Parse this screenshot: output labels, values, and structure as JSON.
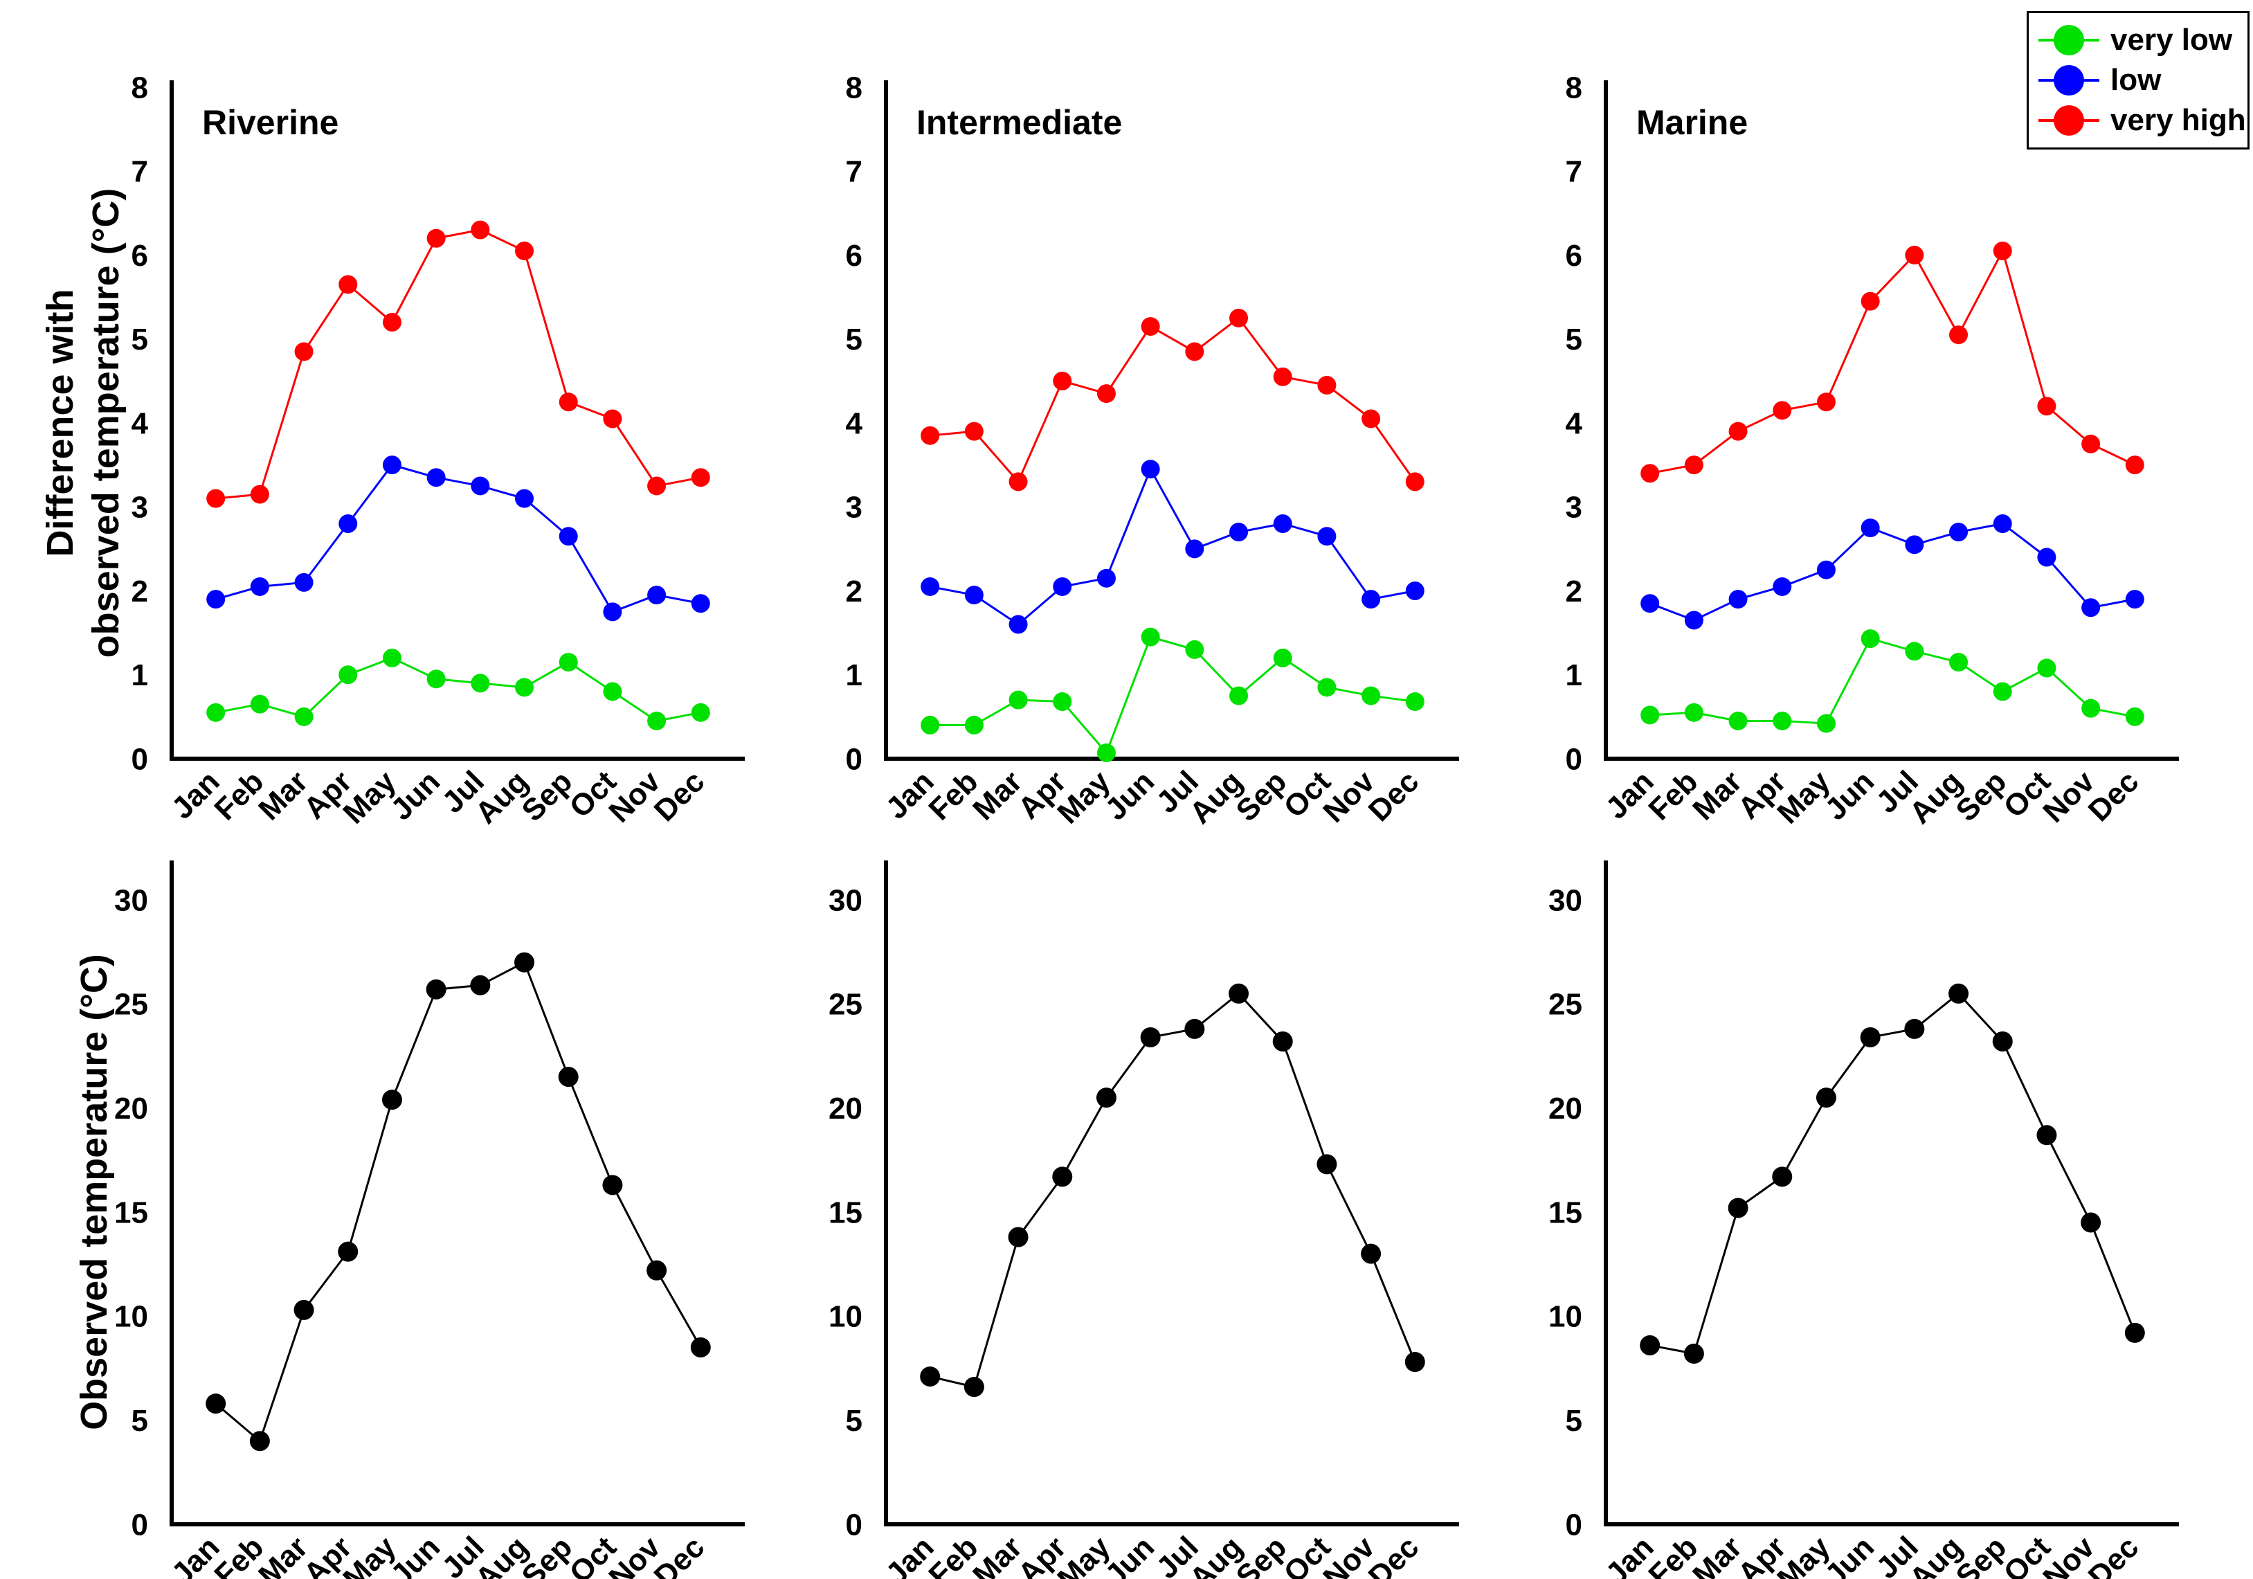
{
  "figure": {
    "background": "#ffffff",
    "axis_color": "#000000"
  },
  "legend": {
    "position": "top-right",
    "items": [
      {
        "label": "very low",
        "color": "#00E100"
      },
      {
        "label": "low",
        "color": "#0000FF"
      },
      {
        "label": "very high",
        "color": "#FF0000"
      }
    ]
  },
  "chart_data": {
    "type": "line",
    "months": [
      "Jan",
      "Feb",
      "Mar",
      "Apr",
      "May",
      "Jun",
      "Jul",
      "Aug",
      "Sep",
      "Oct",
      "Nov",
      "Dec"
    ],
    "top_row": {
      "ylabel": "Difference with observed temperature (°C)",
      "ylabel_lines": [
        "Difference with",
        "observed temperature (°C)"
      ],
      "ylim": [
        0,
        8
      ],
      "yticks": [
        0,
        1,
        2,
        3,
        4,
        5,
        6,
        7,
        8
      ],
      "grid": false,
      "panels": [
        {
          "title": "Riverine",
          "series": [
            {
              "name": "very low",
              "color": "#00E100",
              "values": [
                0.55,
                0.65,
                0.5,
                1.0,
                1.2,
                0.95,
                0.9,
                0.85,
                1.15,
                0.8,
                0.45,
                0.55
              ]
            },
            {
              "name": "low",
              "color": "#0000FF",
              "values": [
                1.9,
                2.05,
                2.1,
                2.8,
                3.5,
                3.35,
                3.25,
                3.1,
                2.65,
                1.75,
                1.95,
                1.85
              ]
            },
            {
              "name": "very high",
              "color": "#FF0000",
              "values": [
                3.1,
                3.15,
                4.85,
                5.65,
                5.2,
                6.2,
                6.3,
                6.05,
                4.25,
                4.05,
                3.25,
                3.35
              ]
            }
          ]
        },
        {
          "title": "Intermediate",
          "series": [
            {
              "name": "very low",
              "color": "#00E100",
              "values": [
                0.4,
                0.4,
                0.7,
                0.68,
                0.07,
                1.45,
                1.3,
                0.75,
                1.2,
                0.85,
                0.75,
                0.68
              ]
            },
            {
              "name": "low",
              "color": "#0000FF",
              "values": [
                2.05,
                1.95,
                1.6,
                2.05,
                2.15,
                3.45,
                2.5,
                2.7,
                2.8,
                2.65,
                1.9,
                2.0
              ]
            },
            {
              "name": "very high",
              "color": "#FF0000",
              "values": [
                3.85,
                3.9,
                3.3,
                4.5,
                4.35,
                5.15,
                4.85,
                5.25,
                4.55,
                4.45,
                4.05,
                3.3
              ]
            }
          ]
        },
        {
          "title": "Marine",
          "series": [
            {
              "name": "very low",
              "color": "#00E100",
              "values": [
                0.52,
                0.55,
                0.45,
                0.45,
                0.42,
                1.43,
                1.28,
                1.15,
                0.8,
                1.08,
                0.6,
                0.5
              ]
            },
            {
              "name": "low",
              "color": "#0000FF",
              "values": [
                1.85,
                1.65,
                1.9,
                2.05,
                2.25,
                2.75,
                2.55,
                2.7,
                2.8,
                2.4,
                1.8,
                1.9
              ]
            },
            {
              "name": "very high",
              "color": "#FF0000",
              "values": [
                3.4,
                3.5,
                3.9,
                4.15,
                4.25,
                5.45,
                6.0,
                5.05,
                6.05,
                4.2,
                3.75,
                3.5
              ]
            }
          ]
        }
      ]
    },
    "bottom_row": {
      "ylabel": "Observed temperature (°C)",
      "ylim": [
        0,
        30
      ],
      "yticks": [
        0,
        5,
        10,
        15,
        20,
        25,
        30
      ],
      "grid": false,
      "series_color": "#000000",
      "panels": [
        {
          "column": "Riverine",
          "values": [
            5.8,
            4.0,
            10.3,
            13.1,
            20.4,
            25.7,
            25.9,
            27.0,
            21.5,
            16.3,
            12.2,
            8.5
          ]
        },
        {
          "column": "Intermediate",
          "values": [
            7.1,
            6.6,
            13.8,
            16.7,
            20.5,
            23.4,
            23.8,
            25.5,
            23.2,
            17.3,
            13.0,
            7.8
          ]
        },
        {
          "column": "Marine",
          "values": [
            8.6,
            8.2,
            15.2,
            16.7,
            20.5,
            23.4,
            23.8,
            25.5,
            23.2,
            18.7,
            14.5,
            9.2
          ]
        }
      ]
    }
  }
}
